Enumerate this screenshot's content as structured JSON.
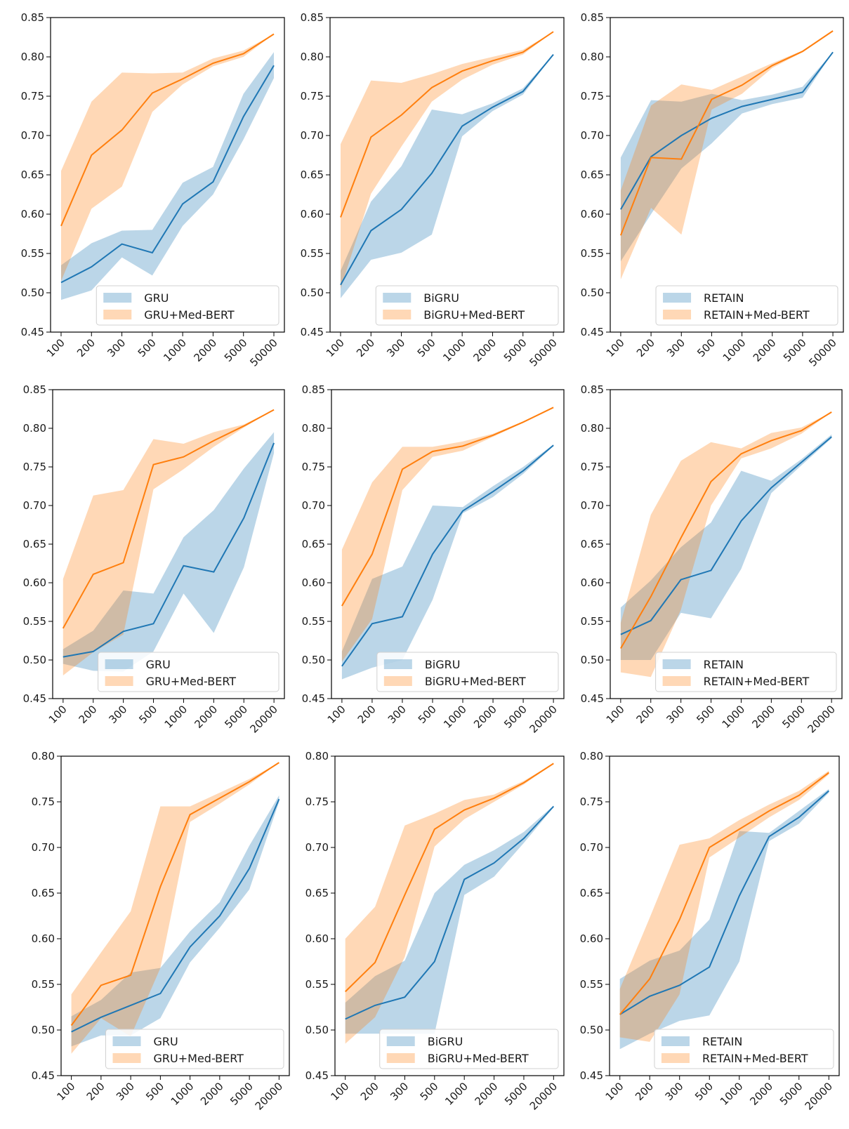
{
  "figure": {
    "colors": {
      "baseline": "#1f77b4",
      "medbert": "#ff7f0e",
      "baseline_band": "#1f77b4",
      "medbert_band": "#ff7f0e"
    }
  },
  "chart_data": [
    {
      "type": "line",
      "panel": "row1-col1",
      "categories": [
        "100",
        "200",
        "300",
        "500",
        "1000",
        "2000",
        "5000",
        "50000"
      ],
      "ylim": [
        0.45,
        0.85
      ],
      "yticks": [
        "0.45",
        "0.50",
        "0.55",
        "0.60",
        "0.65",
        "0.70",
        "0.75",
        "0.80",
        "0.85"
      ],
      "legend_position": "lower-right",
      "series": [
        {
          "name": "GRU",
          "values": [
            0.513,
            0.533,
            0.562,
            0.551,
            0.613,
            0.641,
            0.724,
            0.789
          ],
          "lower": [
            0.491,
            0.503,
            0.545,
            0.522,
            0.585,
            0.625,
            0.695,
            0.773
          ],
          "upper": [
            0.535,
            0.563,
            0.579,
            0.58,
            0.64,
            0.66,
            0.753,
            0.806
          ]
        },
        {
          "name": "GRU+Med-BERT",
          "values": [
            0.585,
            0.675,
            0.707,
            0.754,
            0.772,
            0.792,
            0.804,
            0.829
          ],
          "lower": [
            0.515,
            0.607,
            0.635,
            0.73,
            0.765,
            0.788,
            0.8,
            0.829
          ],
          "upper": [
            0.655,
            0.743,
            0.78,
            0.779,
            0.78,
            0.798,
            0.808,
            0.829
          ]
        }
      ]
    },
    {
      "type": "line",
      "panel": "row1-col2",
      "categories": [
        "100",
        "200",
        "300",
        "500",
        "1000",
        "2000",
        "5000",
        "50000"
      ],
      "ylim": [
        0.45,
        0.85
      ],
      "yticks": [
        "0.45",
        "0.50",
        "0.55",
        "0.60",
        "0.65",
        "0.70",
        "0.75",
        "0.80",
        "0.85"
      ],
      "legend_position": "lower-right",
      "series": [
        {
          "name": "BiGRU",
          "values": [
            0.51,
            0.579,
            0.606,
            0.652,
            0.712,
            0.736,
            0.756,
            0.803
          ],
          "lower": [
            0.493,
            0.542,
            0.551,
            0.574,
            0.699,
            0.731,
            0.752,
            0.803
          ],
          "upper": [
            0.528,
            0.616,
            0.661,
            0.733,
            0.727,
            0.741,
            0.76,
            0.803
          ]
        },
        {
          "name": "BiGRU+Med-BERT",
          "values": [
            0.596,
            0.698,
            0.726,
            0.761,
            0.782,
            0.795,
            0.806,
            0.832
          ],
          "lower": [
            0.505,
            0.626,
            0.686,
            0.743,
            0.771,
            0.79,
            0.803,
            0.832
          ],
          "upper": [
            0.689,
            0.77,
            0.767,
            0.778,
            0.791,
            0.8,
            0.809,
            0.832
          ]
        }
      ]
    },
    {
      "type": "line",
      "panel": "row1-col3",
      "categories": [
        "100",
        "200",
        "300",
        "500",
        "1000",
        "2000",
        "5000",
        "50000"
      ],
      "ylim": [
        0.45,
        0.85
      ],
      "yticks": [
        "0.45",
        "0.50",
        "0.55",
        "0.60",
        "0.65",
        "0.70",
        "0.75",
        "0.80",
        "0.85"
      ],
      "legend_position": "lower-right",
      "series": [
        {
          "name": "RETAIN",
          "values": [
            0.606,
            0.673,
            0.7,
            0.722,
            0.737,
            0.746,
            0.755,
            0.806
          ],
          "lower": [
            0.54,
            0.6,
            0.658,
            0.69,
            0.728,
            0.74,
            0.748,
            0.806
          ],
          "upper": [
            0.672,
            0.745,
            0.743,
            0.753,
            0.745,
            0.752,
            0.762,
            0.806
          ]
        },
        {
          "name": "RETAIN+Med-BERT",
          "values": [
            0.573,
            0.672,
            0.67,
            0.746,
            0.764,
            0.789,
            0.807,
            0.833
          ],
          "lower": [
            0.517,
            0.608,
            0.574,
            0.733,
            0.753,
            0.786,
            0.806,
            0.833
          ],
          "upper": [
            0.63,
            0.738,
            0.765,
            0.758,
            0.775,
            0.792,
            0.808,
            0.833
          ]
        }
      ]
    },
    {
      "type": "line",
      "panel": "row2-col1",
      "categories": [
        "100",
        "200",
        "300",
        "500",
        "1000",
        "2000",
        "5000",
        "20000"
      ],
      "ylim": [
        0.45,
        0.85
      ],
      "yticks": [
        "0.45",
        "0.50",
        "0.55",
        "0.60",
        "0.65",
        "0.70",
        "0.75",
        "0.80",
        "0.85"
      ],
      "legend_position": "lower-right",
      "series": [
        {
          "name": "GRU",
          "values": [
            0.504,
            0.511,
            0.537,
            0.547,
            0.622,
            0.614,
            0.684,
            0.781
          ],
          "lower": [
            0.495,
            0.486,
            0.485,
            0.511,
            0.586,
            0.535,
            0.62,
            0.768
          ],
          "upper": [
            0.514,
            0.538,
            0.59,
            0.586,
            0.659,
            0.694,
            0.748,
            0.795
          ]
        },
        {
          "name": "GRU+Med-BERT",
          "values": [
            0.541,
            0.611,
            0.626,
            0.753,
            0.763,
            0.784,
            0.803,
            0.824
          ],
          "lower": [
            0.48,
            0.51,
            0.533,
            0.721,
            0.747,
            0.776,
            0.801,
            0.824
          ],
          "upper": [
            0.605,
            0.713,
            0.72,
            0.786,
            0.78,
            0.795,
            0.805,
            0.824
          ]
        }
      ]
    },
    {
      "type": "line",
      "panel": "row2-col2",
      "categories": [
        "100",
        "200",
        "300",
        "500",
        "1000",
        "2000",
        "5000",
        "20000"
      ],
      "ylim": [
        0.45,
        0.85
      ],
      "yticks": [
        "0.45",
        "0.50",
        "0.55",
        "0.60",
        "0.65",
        "0.70",
        "0.75",
        "0.80",
        "0.85"
      ],
      "legend_position": "lower-right",
      "series": [
        {
          "name": "BiGRU",
          "values": [
            0.492,
            0.547,
            0.556,
            0.637,
            0.693,
            0.718,
            0.745,
            0.778
          ],
          "lower": [
            0.475,
            0.49,
            0.5,
            0.578,
            0.69,
            0.711,
            0.741,
            0.777
          ],
          "upper": [
            0.511,
            0.605,
            0.621,
            0.7,
            0.698,
            0.725,
            0.75,
            0.779
          ]
        },
        {
          "name": "BiGRU+Med-BERT",
          "values": [
            0.57,
            0.637,
            0.747,
            0.77,
            0.777,
            0.791,
            0.808,
            0.827
          ],
          "lower": [
            0.498,
            0.553,
            0.72,
            0.763,
            0.771,
            0.789,
            0.807,
            0.827
          ],
          "upper": [
            0.643,
            0.73,
            0.776,
            0.776,
            0.783,
            0.793,
            0.809,
            0.827
          ]
        }
      ]
    },
    {
      "type": "line",
      "panel": "row2-col3",
      "categories": [
        "100",
        "200",
        "300",
        "500",
        "1000",
        "2000",
        "5000",
        "20000"
      ],
      "ylim": [
        0.45,
        0.85
      ],
      "yticks": [
        "0.45",
        "0.50",
        "0.55",
        "0.60",
        "0.65",
        "0.70",
        "0.75",
        "0.80",
        "0.85"
      ],
      "legend_position": "lower-right",
      "series": [
        {
          "name": "RETAIN",
          "values": [
            0.533,
            0.551,
            0.604,
            0.616,
            0.68,
            0.723,
            0.756,
            0.789
          ],
          "lower": [
            0.5,
            0.5,
            0.561,
            0.554,
            0.618,
            0.716,
            0.752,
            0.787
          ],
          "upper": [
            0.568,
            0.603,
            0.646,
            0.678,
            0.745,
            0.732,
            0.76,
            0.792
          ]
        },
        {
          "name": "RETAIN+Med-BERT",
          "values": [
            0.515,
            0.582,
            0.658,
            0.731,
            0.767,
            0.784,
            0.797,
            0.821
          ],
          "lower": [
            0.484,
            0.478,
            0.565,
            0.7,
            0.761,
            0.774,
            0.793,
            0.821
          ],
          "upper": [
            0.548,
            0.688,
            0.758,
            0.782,
            0.774,
            0.794,
            0.801,
            0.821
          ]
        }
      ]
    },
    {
      "type": "line",
      "panel": "row3-col1",
      "categories": [
        "100",
        "200",
        "300",
        "500",
        "1000",
        "2000",
        "5000",
        "20000"
      ],
      "ylim": [
        0.45,
        0.8
      ],
      "yticks": [
        "0.45",
        "0.50",
        "0.55",
        "0.60",
        "0.65",
        "0.70",
        "0.75",
        "0.80"
      ],
      "legend_position": "lower-right",
      "series": [
        {
          "name": "GRU",
          "values": [
            0.498,
            0.514,
            0.527,
            0.54,
            0.591,
            0.625,
            0.677,
            0.753
          ],
          "lower": [
            0.482,
            0.494,
            0.494,
            0.513,
            0.574,
            0.612,
            0.654,
            0.75
          ],
          "upper": [
            0.515,
            0.533,
            0.563,
            0.568,
            0.608,
            0.64,
            0.702,
            0.757
          ]
        },
        {
          "name": "GRU+Med-BERT",
          "values": [
            0.505,
            0.549,
            0.56,
            0.657,
            0.736,
            0.754,
            0.772,
            0.793
          ],
          "lower": [
            0.474,
            0.513,
            0.493,
            0.568,
            0.728,
            0.748,
            0.769,
            0.793
          ],
          "upper": [
            0.539,
            0.585,
            0.63,
            0.745,
            0.745,
            0.76,
            0.775,
            0.793
          ]
        }
      ]
    },
    {
      "type": "line",
      "panel": "row3-col2",
      "categories": [
        "100",
        "200",
        "300",
        "500",
        "1000",
        "2000",
        "5000",
        "20000"
      ],
      "ylim": [
        0.45,
        0.8
      ],
      "yticks": [
        "0.45",
        "0.50",
        "0.55",
        "0.60",
        "0.65",
        "0.70",
        "0.75",
        "0.80"
      ],
      "legend_position": "lower-right",
      "series": [
        {
          "name": "BiGRU",
          "values": [
            0.512,
            0.527,
            0.536,
            0.575,
            0.665,
            0.683,
            0.71,
            0.745
          ],
          "lower": [
            0.496,
            0.496,
            0.496,
            0.496,
            0.648,
            0.668,
            0.705,
            0.744
          ],
          "upper": [
            0.53,
            0.559,
            0.576,
            0.65,
            0.681,
            0.697,
            0.717,
            0.746
          ]
        },
        {
          "name": "BiGRU+Med-BERT",
          "values": [
            0.542,
            0.574,
            0.648,
            0.72,
            0.741,
            0.754,
            0.771,
            0.792
          ],
          "lower": [
            0.485,
            0.514,
            0.58,
            0.701,
            0.731,
            0.75,
            0.769,
            0.792
          ],
          "upper": [
            0.6,
            0.635,
            0.724,
            0.737,
            0.752,
            0.758,
            0.773,
            0.792
          ]
        }
      ]
    },
    {
      "type": "line",
      "panel": "row3-col3",
      "categories": [
        "100",
        "200",
        "300",
        "500",
        "1000",
        "2000",
        "5000",
        "20000"
      ],
      "ylim": [
        0.45,
        0.8
      ],
      "yticks": [
        "0.45",
        "0.50",
        "0.55",
        "0.60",
        "0.65",
        "0.70",
        "0.75",
        "0.80"
      ],
      "legend_position": "lower-right",
      "series": [
        {
          "name": "RETAIN",
          "values": [
            0.517,
            0.537,
            0.549,
            0.569,
            0.647,
            0.712,
            0.733,
            0.762
          ],
          "lower": [
            0.479,
            0.496,
            0.51,
            0.516,
            0.575,
            0.707,
            0.726,
            0.76
          ],
          "upper": [
            0.556,
            0.576,
            0.587,
            0.621,
            0.718,
            0.716,
            0.74,
            0.764
          ]
        },
        {
          "name": "RETAIN+Med-BERT",
          "values": [
            0.517,
            0.556,
            0.621,
            0.7,
            0.72,
            0.74,
            0.757,
            0.782
          ],
          "lower": [
            0.492,
            0.487,
            0.539,
            0.689,
            0.711,
            0.733,
            0.752,
            0.78
          ],
          "upper": [
            0.545,
            0.623,
            0.703,
            0.71,
            0.73,
            0.747,
            0.762,
            0.784
          ]
        }
      ]
    }
  ]
}
